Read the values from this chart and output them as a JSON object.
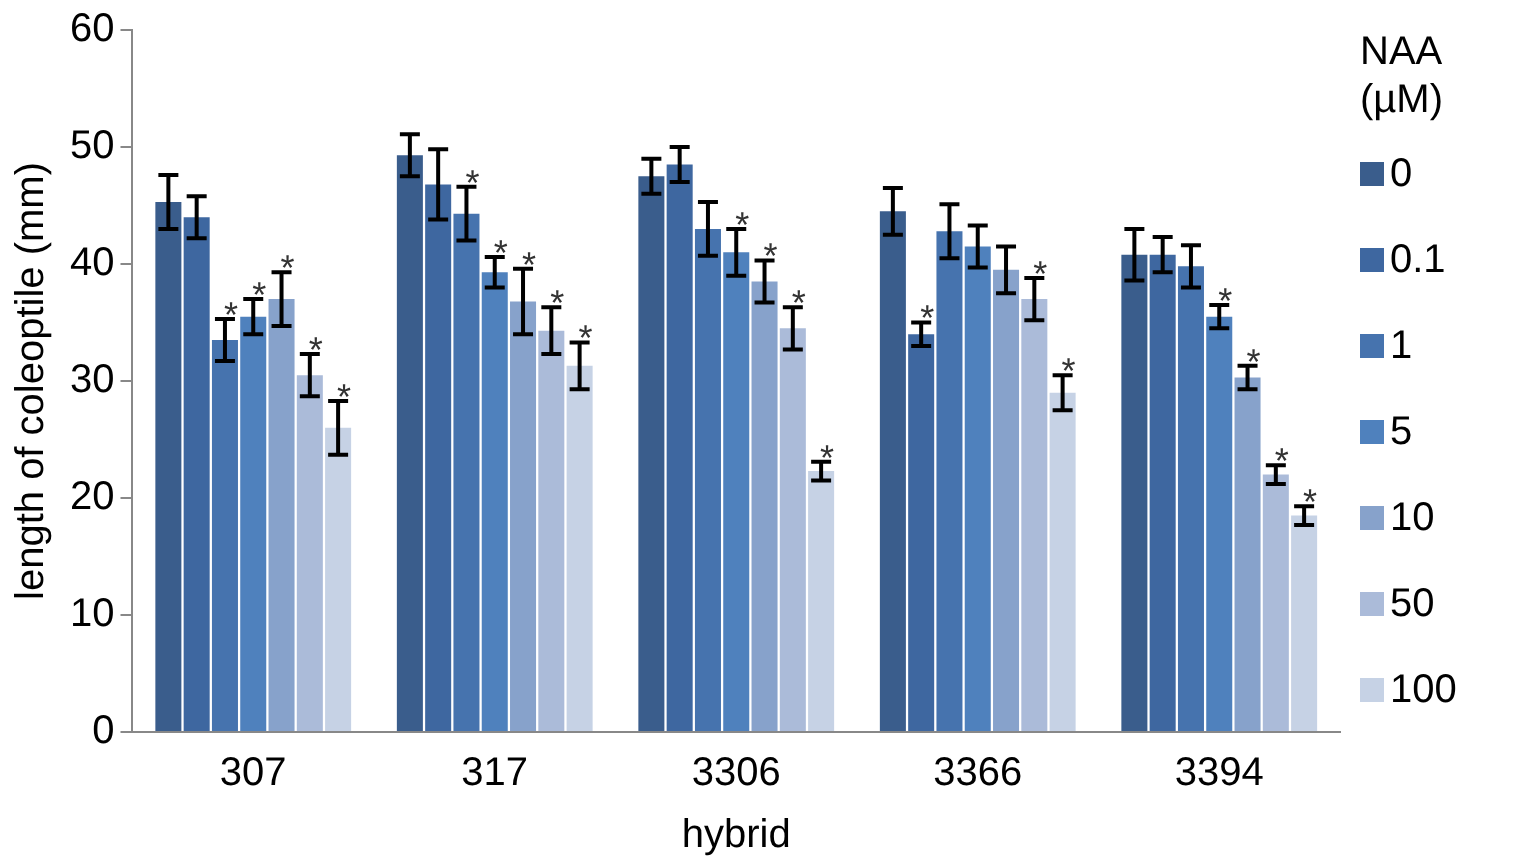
{
  "chart_data": {
    "type": "bar",
    "xlabel": "hybrid",
    "ylabel": "length of coleoptile (mm)",
    "legend_title": "NAA (µM)",
    "legend": "right",
    "grid": false,
    "categories": [
      "307",
      "317",
      "3306",
      "3366",
      "3394"
    ],
    "ylim": [
      0,
      60
    ],
    "yticks": [
      0,
      10,
      20,
      30,
      40,
      50,
      60
    ],
    "series": [
      {
        "name": "0",
        "color": "#3a5d8c",
        "values": [
          45.3,
          49.3,
          47.5,
          44.5,
          40.8
        ],
        "errors": [
          2.3,
          1.8,
          1.5,
          2,
          2.2
        ],
        "value_labels": [
          null,
          null,
          null,
          null,
          null
        ]
      },
      {
        "name": "0.1",
        "color": "#3e67a0",
        "values": [
          44,
          46.8,
          48.5,
          34,
          40.8
        ],
        "errors": [
          1.8,
          3,
          1.5,
          1,
          1.5
        ],
        "value_labels": [
          null,
          null,
          null,
          "*",
          null
        ]
      },
      {
        "name": "1",
        "color": "#4673ae",
        "values": [
          33.5,
          44.3,
          43,
          42.8,
          39.8
        ],
        "errors": [
          1.8,
          2.3,
          2.3,
          2.3,
          1.8
        ],
        "value_labels": [
          "*",
          "*",
          null,
          null,
          null
        ]
      },
      {
        "name": "5",
        "color": "#4f81bd",
        "values": [
          35.5,
          39.3,
          41,
          41.5,
          35.5
        ],
        "errors": [
          1.5,
          1.3,
          2,
          1.8,
          1
        ],
        "value_labels": [
          "*",
          "*",
          "*",
          null,
          "*"
        ]
      },
      {
        "name": "10",
        "color": "#87a2cb",
        "values": [
          37,
          36.8,
          38.5,
          39.5,
          30.3
        ],
        "errors": [
          2.3,
          2.8,
          1.8,
          2,
          1
        ],
        "value_labels": [
          "*",
          "*",
          "*",
          null,
          "*"
        ]
      },
      {
        "name": "50",
        "color": "#abbbd9",
        "values": [
          30.5,
          34.3,
          34.5,
          37,
          22
        ],
        "errors": [
          1.8,
          2,
          1.8,
          1.8,
          0.8
        ],
        "value_labels": [
          "*",
          "*",
          "*",
          "*",
          "*"
        ]
      },
      {
        "name": "100",
        "color": "#c6d2e5",
        "values": [
          26,
          31.3,
          22.3,
          29,
          18.5
        ],
        "errors": [
          2.3,
          2,
          0.8,
          1.5,
          0.8
        ],
        "value_labels": [
          "*",
          "*",
          "*",
          "*",
          "*"
        ]
      }
    ]
  }
}
